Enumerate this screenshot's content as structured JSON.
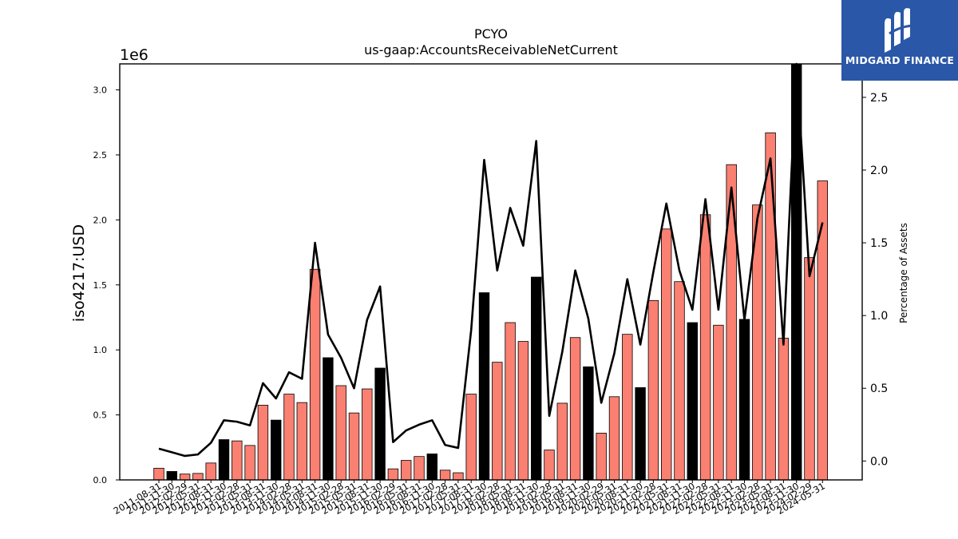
{
  "chart_data": {
    "type": "bar",
    "title": "PCYO",
    "subtitle": "us-gaap:AccountsReceivableNetCurrent",
    "ylabel": "iso4217:USD",
    "y_offset_label": "1e6",
    "y2label": "Percentage of Assets",
    "ylim": [
      0,
      3200000
    ],
    "y2lim": [
      -0.13,
      2.73
    ],
    "yticks": [
      "0.0",
      "0.5",
      "1.0",
      "1.5",
      "2.0",
      "2.5",
      "3.0"
    ],
    "y2ticks": [
      "0.0",
      "0.5",
      "1.0",
      "1.5",
      "2.0",
      "2.5"
    ],
    "grid": false,
    "categories": [
      "2011-08-31",
      "2011-11-30",
      "2012-02-29",
      "2012-05-31",
      "2012-08-31",
      "2012-11-30",
      "2013-02-28",
      "2013-05-31",
      "2013-08-31",
      "2013-11-30",
      "2014-02-28",
      "2014-05-31",
      "2014-08-31",
      "2014-11-30",
      "2015-02-28",
      "2015-05-31",
      "2015-08-31",
      "2015-11-30",
      "2016-02-29",
      "2016-05-31",
      "2016-08-31",
      "2016-11-30",
      "2017-02-28",
      "2017-05-31",
      "2017-08-31",
      "2017-11-30",
      "2018-02-28",
      "2018-05-31",
      "2018-08-31",
      "2018-11-30",
      "2019-02-28",
      "2019-05-31",
      "2019-08-31",
      "2019-11-30",
      "2020-02-29",
      "2020-05-31",
      "2020-08-31",
      "2020-11-30",
      "2021-02-28",
      "2021-05-31",
      "2021-08-31",
      "2021-11-30",
      "2022-02-28",
      "2022-05-31",
      "2022-08-31",
      "2022-11-30",
      "2023-02-28",
      "2023-05-31",
      "2023-08-31",
      "2023-11-30",
      "2024-02-29",
      "2024-05-31"
    ],
    "series": [
      {
        "type": "bar",
        "values": [
          90000,
          65000,
          45000,
          50000,
          130000,
          310000,
          300000,
          265000,
          575000,
          460000,
          660000,
          595000,
          1620000,
          940000,
          725000,
          515000,
          700000,
          860000,
          85000,
          150000,
          180000,
          200000,
          75000,
          55000,
          660000,
          1440000,
          905000,
          1210000,
          1065000,
          1560000,
          230000,
          590000,
          1095000,
          870000,
          360000,
          640000,
          1120000,
          710000,
          1380000,
          1930000,
          1525000,
          1210000,
          2040000,
          1190000,
          2425000,
          1235000,
          2115000,
          2670000,
          1090000,
          3200000,
          1710000,
          2300000
        ],
        "highlight": [
          false,
          true,
          false,
          false,
          false,
          true,
          false,
          false,
          false,
          true,
          false,
          false,
          false,
          true,
          false,
          false,
          false,
          true,
          false,
          false,
          false,
          true,
          false,
          false,
          false,
          true,
          false,
          false,
          false,
          true,
          false,
          false,
          false,
          true,
          false,
          false,
          false,
          true,
          false,
          false,
          false,
          true,
          false,
          false,
          false,
          true,
          false,
          false,
          false,
          true,
          false,
          false
        ]
      },
      {
        "type": "line",
        "axis": "right",
        "values": [
          0.085,
          0.06,
          0.035,
          0.045,
          0.125,
          0.28,
          0.27,
          0.245,
          0.535,
          0.43,
          0.61,
          0.565,
          1.5,
          0.87,
          0.71,
          0.5,
          0.97,
          1.2,
          0.13,
          0.21,
          0.25,
          0.28,
          0.11,
          0.09,
          0.9,
          2.07,
          1.31,
          1.74,
          1.48,
          2.2,
          0.31,
          0.75,
          1.31,
          0.98,
          0.4,
          0.74,
          1.25,
          0.8,
          1.3,
          1.77,
          1.31,
          1.04,
          1.8,
          1.04,
          1.88,
          0.97,
          1.67,
          2.08,
          0.8,
          2.73,
          1.27,
          1.64
        ]
      }
    ],
    "colors": {
      "bar": "#fa8072",
      "bar_highlight": "#000000",
      "line": "#000000"
    }
  },
  "logo": {
    "text": "MIDGARD FINANCE"
  }
}
